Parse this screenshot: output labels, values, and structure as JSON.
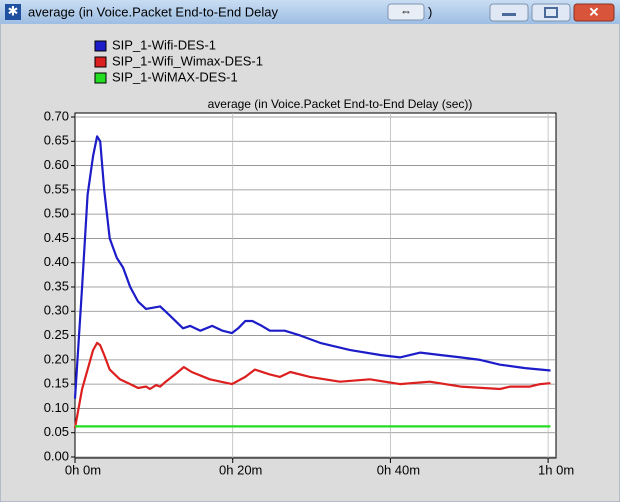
{
  "window_title": "average (in Voice.Packet End-to-End Delay",
  "window_title_tail": ")",
  "chart_data": {
    "type": "line",
    "title": "average (in Voice.Packet End-to-End Delay (sec))",
    "xlim": [
      0,
      61
    ],
    "ylim": [
      0,
      0.7
    ],
    "xticks": [
      {
        "value": 0,
        "label": "0h 0m"
      },
      {
        "value": 20,
        "label": "0h 20m"
      },
      {
        "value": 40,
        "label": "0h 40m"
      },
      {
        "value": 60,
        "label": "1h 0m"
      }
    ],
    "yticks": [
      {
        "value": 0,
        "label": "0.00"
      },
      {
        "value": 0.05,
        "label": "0.05"
      },
      {
        "value": 0.1,
        "label": "0.10"
      },
      {
        "value": 0.15,
        "label": "0.15"
      },
      {
        "value": 0.2,
        "label": "0.20"
      },
      {
        "value": 0.25,
        "label": "0.25"
      },
      {
        "value": 0.3,
        "label": "0.30"
      },
      {
        "value": 0.35,
        "label": "0.35"
      },
      {
        "value": 0.4,
        "label": "0.40"
      },
      {
        "value": 0.45,
        "label": "0.45"
      },
      {
        "value": 0.5,
        "label": "0.50"
      },
      {
        "value": 0.55,
        "label": "0.55"
      },
      {
        "value": 0.6,
        "label": "0.60"
      },
      {
        "value": 0.65,
        "label": "0.65"
      },
      {
        "value": 0.7,
        "label": "0.70"
      }
    ],
    "grid": true,
    "series": [
      {
        "name": "SIP_1-Wifi-DES-1",
        "color": "#1c1cc8",
        "x": [
          0,
          0.9,
          1.6,
          2.3,
          2.8,
          3.2,
          3.7,
          4.4,
          5.3,
          6.1,
          7.0,
          8.0,
          9.0,
          10.8,
          12.1,
          13.7,
          14.6,
          15.9,
          17.4,
          18.7,
          19.9,
          20.7,
          21.6,
          22.5,
          23.7,
          24.7,
          26.6,
          28.6,
          31.1,
          34.9,
          38.7,
          41.2,
          43.8,
          46.3,
          48.9,
          51.4,
          53.9,
          57.1,
          60.3
        ],
        "values": [
          0.12,
          0.35,
          0.54,
          0.62,
          0.66,
          0.65,
          0.55,
          0.45,
          0.41,
          0.39,
          0.35,
          0.32,
          0.305,
          0.31,
          0.29,
          0.265,
          0.27,
          0.26,
          0.27,
          0.26,
          0.255,
          0.265,
          0.28,
          0.28,
          0.27,
          0.26,
          0.26,
          0.25,
          0.235,
          0.22,
          0.21,
          0.205,
          0.215,
          0.21,
          0.205,
          0.2,
          0.19,
          0.183,
          0.178
        ]
      },
      {
        "name": "SIP_1-Wifi_Wimax-DES-1",
        "color": "#dc2020",
        "x": [
          0,
          0.9,
          1.6,
          2.3,
          2.8,
          3.2,
          3.7,
          4.4,
          5.7,
          7.0,
          8.0,
          9.0,
          9.5,
          10.3,
          10.8,
          11.5,
          12.7,
          13.8,
          14.8,
          17.1,
          19.9,
          21.6,
          22.8,
          24.7,
          26.0,
          27.3,
          29.8,
          33.6,
          37.4,
          41.2,
          45.0,
          48.9,
          53.9,
          55.2,
          57.7,
          59.0,
          60.3
        ],
        "values": [
          0.06,
          0.14,
          0.18,
          0.22,
          0.235,
          0.23,
          0.21,
          0.18,
          0.16,
          0.15,
          0.142,
          0.145,
          0.14,
          0.148,
          0.145,
          0.155,
          0.17,
          0.185,
          0.175,
          0.16,
          0.15,
          0.165,
          0.18,
          0.17,
          0.165,
          0.175,
          0.165,
          0.155,
          0.16,
          0.15,
          0.155,
          0.145,
          0.14,
          0.145,
          0.145,
          0.15,
          0.152
        ]
      },
      {
        "name": "SIP_1-WiMAX-DES-1",
        "color": "#22dd22",
        "x": [
          0,
          60.3
        ],
        "values": [
          0.063,
          0.063
        ]
      }
    ]
  }
}
